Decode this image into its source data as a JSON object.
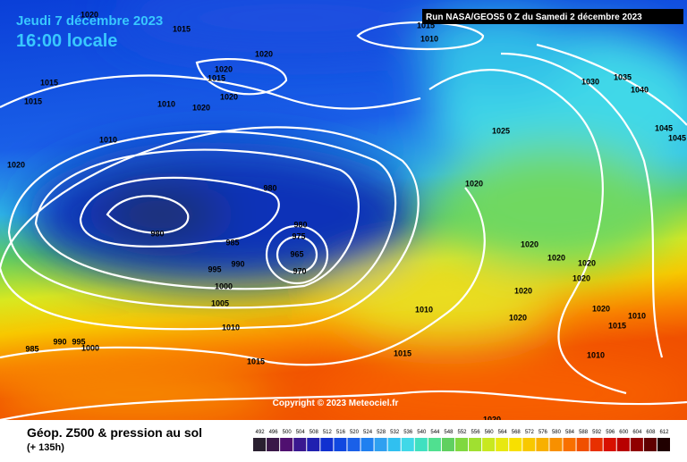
{
  "header": {
    "date": "Jeudi 7 décembre 2023",
    "time": "16:00 locale",
    "run": "Run NASA/GEOS5 0 Z du Samedi 2 décembre 2023"
  },
  "copyright": "Copyright © 2023 Meteociel.fr",
  "footer": {
    "title": "Géop. Z500 & pression au sol",
    "lead": "(+ 135h)"
  },
  "legend": {
    "values": [
      492,
      496,
      500,
      504,
      508,
      512,
      516,
      520,
      524,
      528,
      532,
      536,
      540,
      544,
      548,
      552,
      556,
      560,
      564,
      568,
      572,
      576,
      580,
      584,
      588,
      592,
      596,
      600,
      604,
      608,
      612
    ]
  },
  "isobar_labels": [
    "1020",
    "1015",
    "1020",
    "1015",
    "1010",
    "1020",
    "1015",
    "1020",
    "1010",
    "1020",
    "1015",
    "1015",
    "1010",
    "1020",
    "1030",
    "1035",
    "1040",
    "1025",
    "1045",
    "1045",
    "1020",
    "980",
    "980",
    "980",
    "975",
    "985",
    "965",
    "990",
    "970",
    "995",
    "1000",
    "1005",
    "1010",
    "1020",
    "1020",
    "1020",
    "1020",
    "1020",
    "1010",
    "1020",
    "1020",
    "1010",
    "1015",
    "1015",
    "1015",
    "985",
    "990",
    "995",
    "1000",
    "1010",
    "1020"
  ]
}
